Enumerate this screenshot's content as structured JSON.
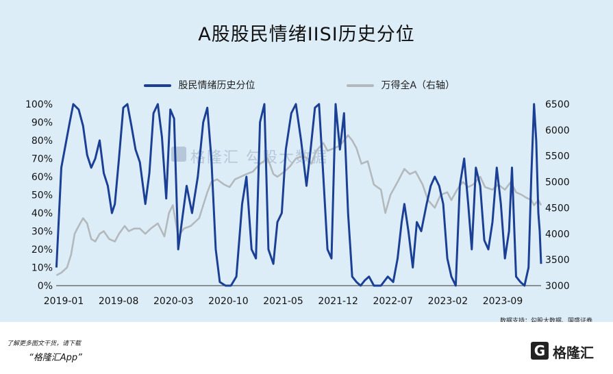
{
  "title": "A股股民情绪IISI历史分位",
  "source": "数据支持：勾股大数据、国盛证券",
  "footer": {
    "download_text": "了解更多图文干货，请下载",
    "app_text": "“格隆汇App”",
    "logo_letter": "G",
    "logo_text": "格隆汇"
  },
  "watermark": "格隆汇 勾股大数据",
  "chart_data": {
    "type": "line",
    "title": "A股股民情绪IISI历史分位",
    "x_tick_labels": [
      "2019-01",
      "2019-08",
      "2020-03",
      "2020-10",
      "2021-05",
      "2021-12",
      "2022-07",
      "2023-02",
      "2023-09"
    ],
    "x_range": [
      "2019-01-01",
      "2023-11-20"
    ],
    "y_left": {
      "range": [
        0,
        100
      ],
      "unit": "%",
      "tick_labels": [
        "0%",
        "10%",
        "20%",
        "30%",
        "40%",
        "50%",
        "60%",
        "70%",
        "80%",
        "90%",
        "100%"
      ]
    },
    "y_right": {
      "range": [
        3000,
        6500
      ],
      "tick_labels": [
        "3000",
        "3500",
        "4000",
        "4500",
        "5000",
        "5500",
        "6000",
        "6500"
      ]
    },
    "legend_position": "top",
    "grid": false,
    "series": [
      {
        "name": "股民情绪历史分位",
        "axis": "left",
        "color": "#1a3f94",
        "points": [
          [
            "2019-01-02",
            10
          ],
          [
            "2019-01-20",
            65
          ],
          [
            "2019-02-05",
            78
          ],
          [
            "2019-02-20",
            90
          ],
          [
            "2019-03-05",
            100
          ],
          [
            "2019-03-25",
            97
          ],
          [
            "2019-04-10",
            88
          ],
          [
            "2019-04-25",
            72
          ],
          [
            "2019-05-10",
            65
          ],
          [
            "2019-05-25",
            70
          ],
          [
            "2019-06-10",
            80
          ],
          [
            "2019-06-25",
            62
          ],
          [
            "2019-07-10",
            55
          ],
          [
            "2019-07-25",
            40
          ],
          [
            "2019-08-05",
            45
          ],
          [
            "2019-08-20",
            70
          ],
          [
            "2019-09-05",
            98
          ],
          [
            "2019-09-20",
            100
          ],
          [
            "2019-10-05",
            88
          ],
          [
            "2019-10-20",
            75
          ],
          [
            "2019-11-05",
            68
          ],
          [
            "2019-11-25",
            45
          ],
          [
            "2019-12-10",
            62
          ],
          [
            "2019-12-25",
            95
          ],
          [
            "2020-01-10",
            100
          ],
          [
            "2020-01-25",
            82
          ],
          [
            "2020-02-10",
            48
          ],
          [
            "2020-02-25",
            97
          ],
          [
            "2020-03-10",
            92
          ],
          [
            "2020-03-25",
            20
          ],
          [
            "2020-04-10",
            38
          ],
          [
            "2020-04-25",
            55
          ],
          [
            "2020-05-15",
            40
          ],
          [
            "2020-06-05",
            60
          ],
          [
            "2020-06-25",
            90
          ],
          [
            "2020-07-10",
            98
          ],
          [
            "2020-07-25",
            70
          ],
          [
            "2020-08-10",
            20
          ],
          [
            "2020-08-25",
            2
          ],
          [
            "2020-09-15",
            0
          ],
          [
            "2020-10-05",
            0
          ],
          [
            "2020-10-25",
            5
          ],
          [
            "2020-11-15",
            45
          ],
          [
            "2020-12-01",
            60
          ],
          [
            "2020-12-20",
            20
          ],
          [
            "2021-01-05",
            15
          ],
          [
            "2021-01-20",
            90
          ],
          [
            "2021-02-05",
            100
          ],
          [
            "2021-02-20",
            20
          ],
          [
            "2021-03-10",
            12
          ],
          [
            "2021-03-25",
            35
          ],
          [
            "2021-04-10",
            40
          ],
          [
            "2021-04-25",
            75
          ],
          [
            "2021-05-15",
            95
          ],
          [
            "2021-06-01",
            100
          ],
          [
            "2021-06-20",
            80
          ],
          [
            "2021-07-10",
            55
          ],
          [
            "2021-07-25",
            75
          ],
          [
            "2021-08-10",
            98
          ],
          [
            "2021-08-25",
            100
          ],
          [
            "2021-09-10",
            60
          ],
          [
            "2021-09-25",
            20
          ],
          [
            "2021-10-10",
            15
          ],
          [
            "2021-10-25",
            100
          ],
          [
            "2021-11-10",
            75
          ],
          [
            "2021-11-25",
            95
          ],
          [
            "2021-12-10",
            40
          ],
          [
            "2021-12-25",
            5
          ],
          [
            "2022-01-10",
            2
          ],
          [
            "2022-01-25",
            0
          ],
          [
            "2022-02-10",
            3
          ],
          [
            "2022-02-25",
            5
          ],
          [
            "2022-03-15",
            0
          ],
          [
            "2022-04-10",
            0
          ],
          [
            "2022-05-05",
            5
          ],
          [
            "2022-05-25",
            2
          ],
          [
            "2022-06-10",
            15
          ],
          [
            "2022-06-25",
            35
          ],
          [
            "2022-07-05",
            45
          ],
          [
            "2022-07-20",
            30
          ],
          [
            "2022-08-05",
            10
          ],
          [
            "2022-08-20",
            35
          ],
          [
            "2022-09-05",
            30
          ],
          [
            "2022-09-25",
            45
          ],
          [
            "2022-10-10",
            55
          ],
          [
            "2022-10-25",
            60
          ],
          [
            "2022-11-10",
            55
          ],
          [
            "2022-11-25",
            45
          ],
          [
            "2022-12-10",
            15
          ],
          [
            "2022-12-25",
            5
          ],
          [
            "2023-01-10",
            0
          ],
          [
            "2023-01-25",
            55
          ],
          [
            "2023-02-10",
            70
          ],
          [
            "2023-02-25",
            45
          ],
          [
            "2023-03-10",
            20
          ],
          [
            "2023-03-25",
            65
          ],
          [
            "2023-04-10",
            55
          ],
          [
            "2023-04-25",
            25
          ],
          [
            "2023-05-10",
            20
          ],
          [
            "2023-05-25",
            35
          ],
          [
            "2023-06-10",
            65
          ],
          [
            "2023-06-25",
            45
          ],
          [
            "2023-07-10",
            15
          ],
          [
            "2023-07-25",
            30
          ],
          [
            "2023-08-05",
            65
          ],
          [
            "2023-08-20",
            5
          ],
          [
            "2023-09-05",
            2
          ],
          [
            "2023-09-20",
            0
          ],
          [
            "2023-10-05",
            10
          ],
          [
            "2023-10-15",
            60
          ],
          [
            "2023-10-25",
            100
          ],
          [
            "2023-11-02",
            80
          ],
          [
            "2023-11-10",
            40
          ],
          [
            "2023-11-15",
            30
          ],
          [
            "2023-11-20",
            12
          ]
        ]
      },
      {
        "name": "万得全A（右轴）",
        "axis": "right",
        "color": "#b3b8bc",
        "points": [
          [
            "2019-01-02",
            3200
          ],
          [
            "2019-01-20",
            3250
          ],
          [
            "2019-02-10",
            3350
          ],
          [
            "2019-02-25",
            3600
          ],
          [
            "2019-03-10",
            4000
          ],
          [
            "2019-03-25",
            4150
          ],
          [
            "2019-04-10",
            4300
          ],
          [
            "2019-04-25",
            4200
          ],
          [
            "2019-05-10",
            3900
          ],
          [
            "2019-05-25",
            3850
          ],
          [
            "2019-06-10",
            4000
          ],
          [
            "2019-06-25",
            4050
          ],
          [
            "2019-07-15",
            3900
          ],
          [
            "2019-08-05",
            3850
          ],
          [
            "2019-08-20",
            4000
          ],
          [
            "2019-09-10",
            4150
          ],
          [
            "2019-09-25",
            4050
          ],
          [
            "2019-10-15",
            4100
          ],
          [
            "2019-11-05",
            4100
          ],
          [
            "2019-11-25",
            4000
          ],
          [
            "2019-12-15",
            4100
          ],
          [
            "2020-01-10",
            4200
          ],
          [
            "2020-02-03",
            3950
          ],
          [
            "2020-02-20",
            4400
          ],
          [
            "2020-03-05",
            4550
          ],
          [
            "2020-03-25",
            3950
          ],
          [
            "2020-04-15",
            4100
          ],
          [
            "2020-05-10",
            4150
          ],
          [
            "2020-06-10",
            4300
          ],
          [
            "2020-07-10",
            4800
          ],
          [
            "2020-07-25",
            5000
          ],
          [
            "2020-08-15",
            5050
          ],
          [
            "2020-09-10",
            4950
          ],
          [
            "2020-09-30",
            4900
          ],
          [
            "2020-10-20",
            5050
          ],
          [
            "2020-11-10",
            5100
          ],
          [
            "2020-12-01",
            5150
          ],
          [
            "2020-12-25",
            5200
          ],
          [
            "2021-01-20",
            5350
          ],
          [
            "2021-02-18",
            5450
          ],
          [
            "2021-03-10",
            5150
          ],
          [
            "2021-03-25",
            5100
          ],
          [
            "2021-04-20",
            5200
          ],
          [
            "2021-05-10",
            5300
          ],
          [
            "2021-06-01",
            5450
          ],
          [
            "2021-06-25",
            5500
          ],
          [
            "2021-07-15",
            5450
          ],
          [
            "2021-07-28",
            5350
          ],
          [
            "2021-08-15",
            5600
          ],
          [
            "2021-09-10",
            5750
          ],
          [
            "2021-09-25",
            5600
          ],
          [
            "2021-10-20",
            5650
          ],
          [
            "2021-11-10",
            5700
          ],
          [
            "2021-12-10",
            5900
          ],
          [
            "2021-12-25",
            5800
          ],
          [
            "2022-01-10",
            5650
          ],
          [
            "2022-01-28",
            5350
          ],
          [
            "2022-02-20",
            5400
          ],
          [
            "2022-03-15",
            4950
          ],
          [
            "2022-04-10",
            4850
          ],
          [
            "2022-04-26",
            4400
          ],
          [
            "2022-05-15",
            4750
          ],
          [
            "2022-06-10",
            5000
          ],
          [
            "2022-07-05",
            5250
          ],
          [
            "2022-07-25",
            5150
          ],
          [
            "2022-08-15",
            5200
          ],
          [
            "2022-09-10",
            4950
          ],
          [
            "2022-09-30",
            4650
          ],
          [
            "2022-10-25",
            4500
          ],
          [
            "2022-11-15",
            4750
          ],
          [
            "2022-12-10",
            4800
          ],
          [
            "2022-12-25",
            4650
          ],
          [
            "2023-01-15",
            4850
          ],
          [
            "2023-02-05",
            5000
          ],
          [
            "2023-02-25",
            4900
          ],
          [
            "2023-03-15",
            4950
          ],
          [
            "2023-04-10",
            5100
          ],
          [
            "2023-04-28",
            4900
          ],
          [
            "2023-05-25",
            4850
          ],
          [
            "2023-06-15",
            4950
          ],
          [
            "2023-07-10",
            4850
          ],
          [
            "2023-08-01",
            5000
          ],
          [
            "2023-08-20",
            4800
          ],
          [
            "2023-09-10",
            4750
          ],
          [
            "2023-09-25",
            4700
          ],
          [
            "2023-10-15",
            4650
          ],
          [
            "2023-10-25",
            4550
          ],
          [
            "2023-11-10",
            4650
          ],
          [
            "2023-11-20",
            4550
          ]
        ]
      }
    ]
  }
}
